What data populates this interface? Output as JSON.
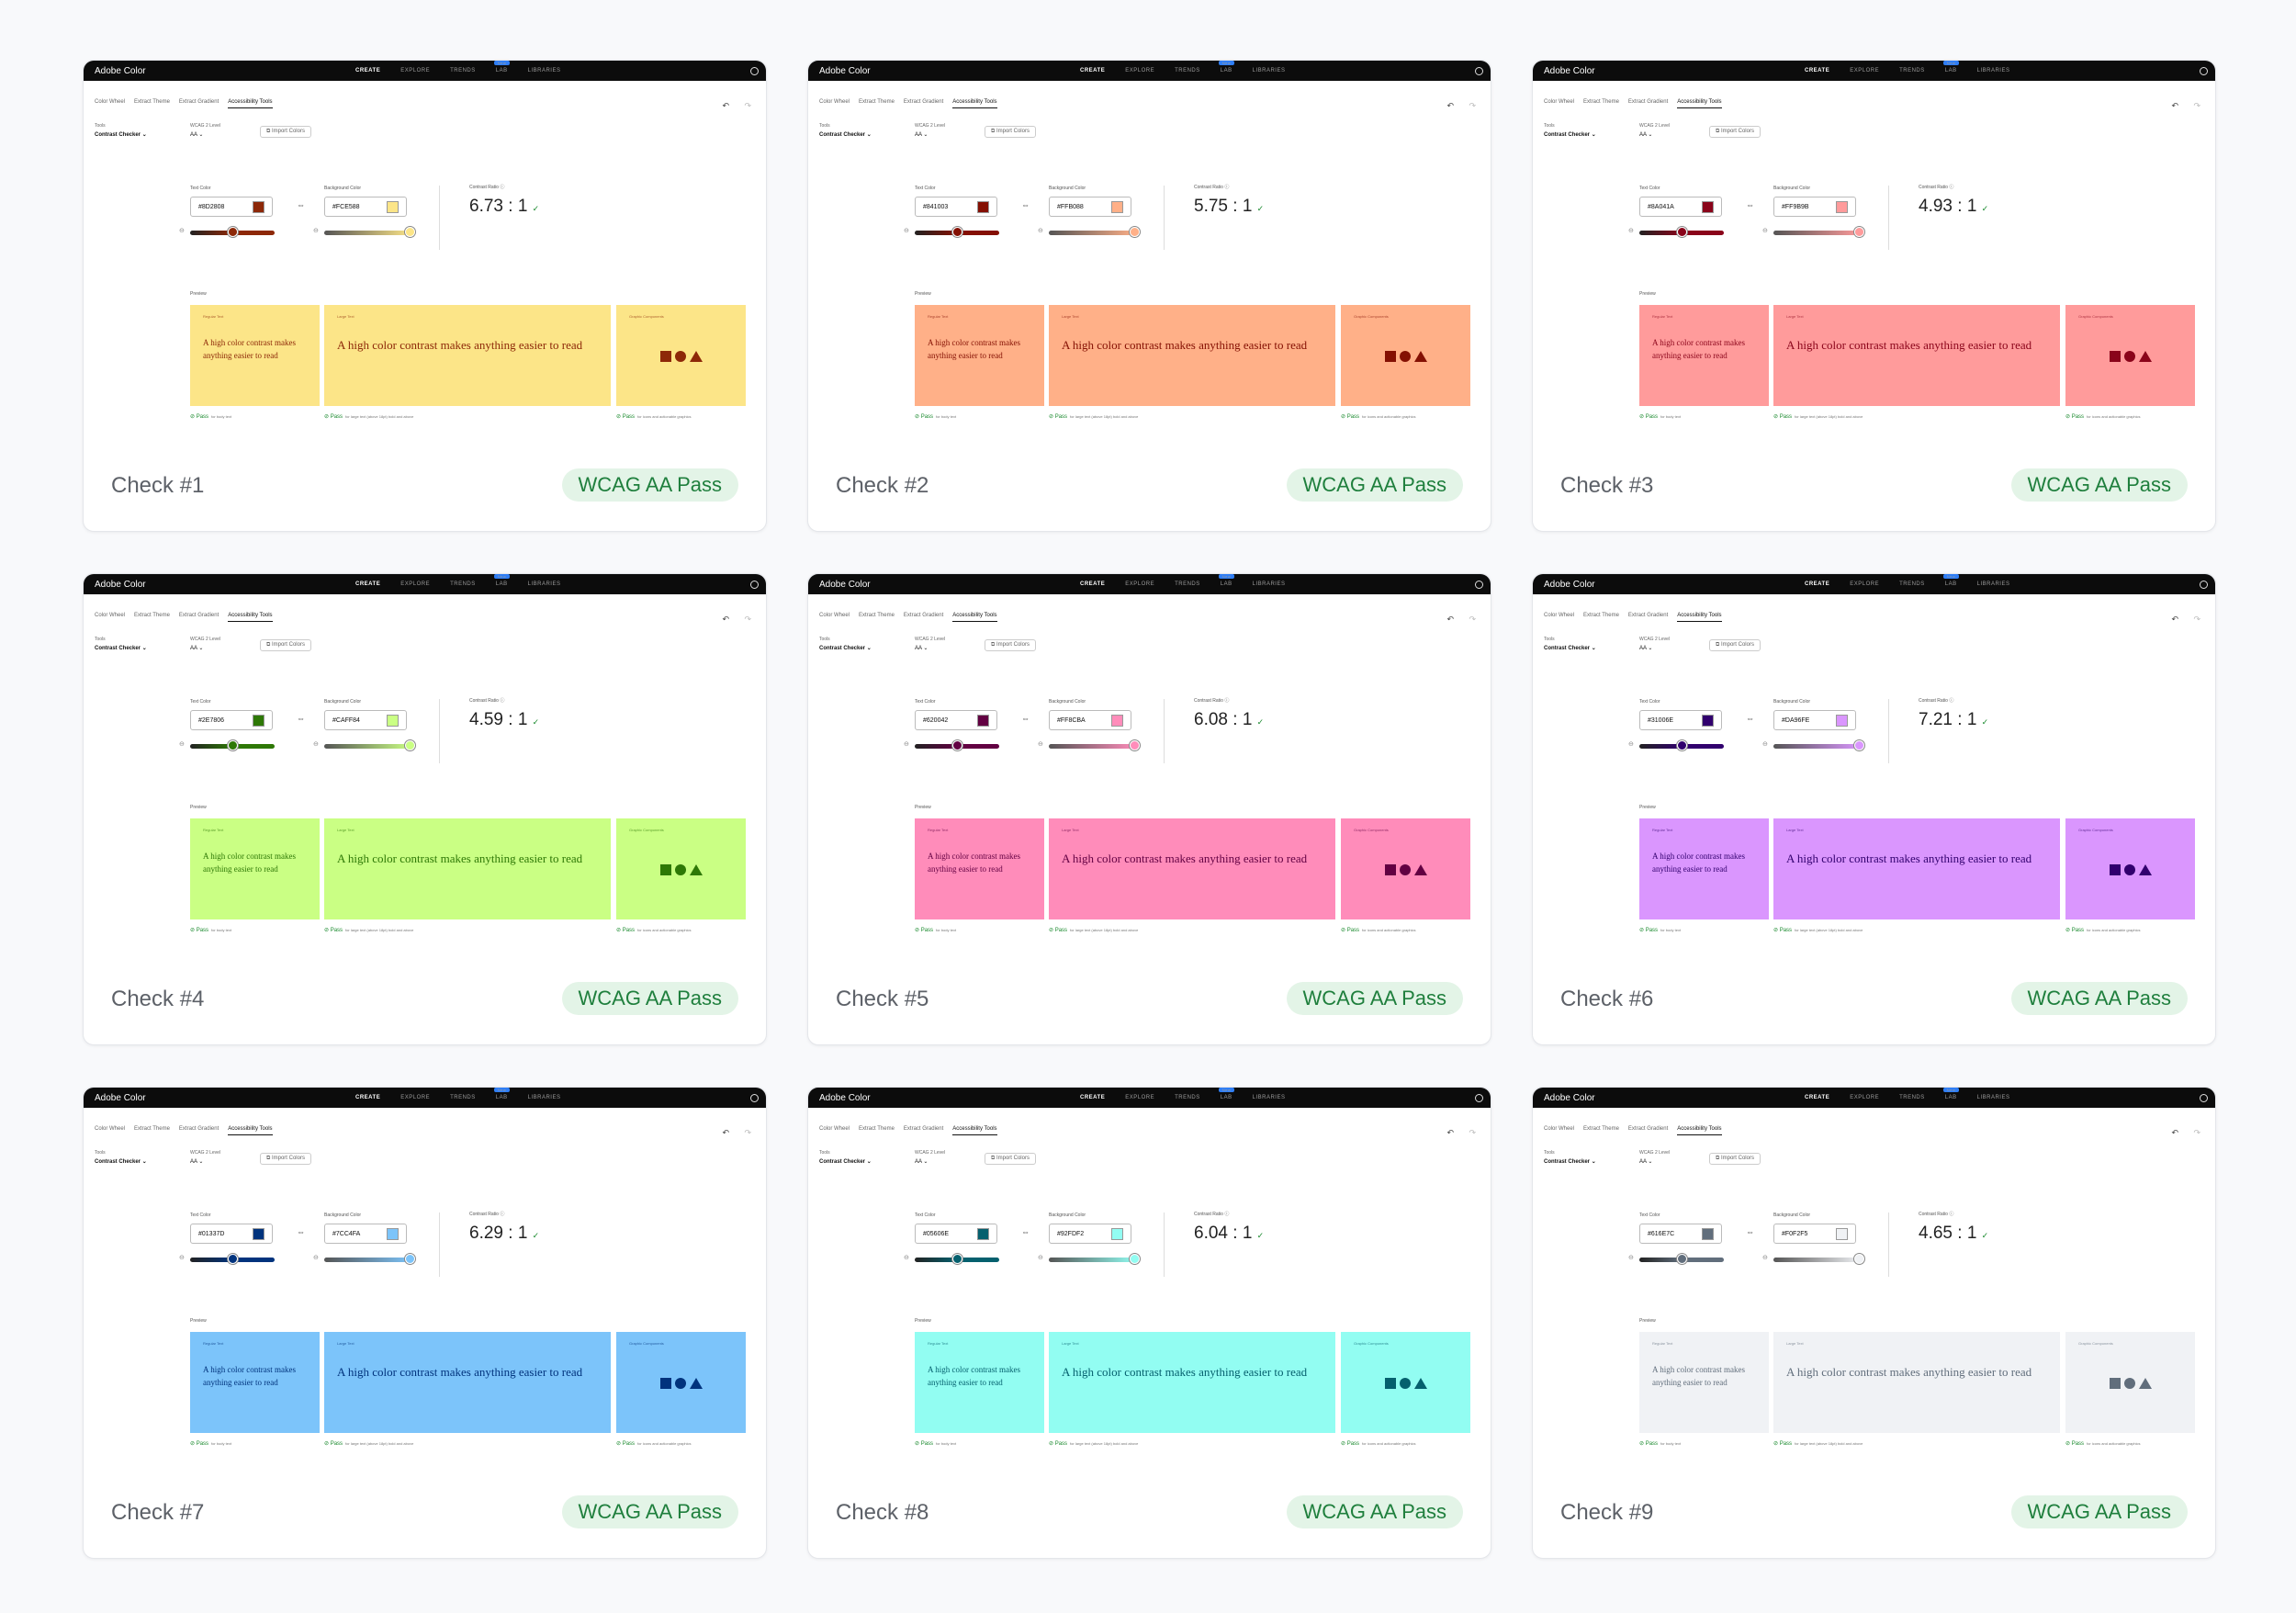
{
  "ui": {
    "brand": "Adobe Color",
    "nav": [
      "CREATE",
      "EXPLORE",
      "TRENDS",
      "LAB",
      "LIBRARIES"
    ],
    "new_badge": "New",
    "tabs": [
      "Color Wheel",
      "Extract Theme",
      "Extract Gradient",
      "Accessibility Tools"
    ],
    "tools_label": "Tools",
    "tools_value": "Contrast Checker",
    "wcag_label": "WCAG 2 Level",
    "wcag_value": "AA",
    "import_label": "Import Colors",
    "text_color_label": "Text Color",
    "bg_color_label": "Background Color",
    "contrast_label": "Contrast Ratio",
    "preview_label": "Preview",
    "regular_text_title": "Regular Text",
    "large_text_title": "Large Text",
    "graphic_title": "Graphic Components",
    "sample_text": "A high color contrast makes anything easier to read",
    "pass_label": "Pass",
    "note_regular": "for body text",
    "note_large": "for large text (above 18pt) bold and above",
    "note_graphic": "for icons and actionable graphics"
  },
  "checks": [
    {
      "label": "Check #1",
      "status": "WCAG AA Pass",
      "text_hex": "#8D2808",
      "bg_hex": "#FCE588",
      "ratio": "6.73 : 1"
    },
    {
      "label": "Check #2",
      "status": "WCAG AA Pass",
      "text_hex": "#841003",
      "bg_hex": "#FFB088",
      "ratio": "5.75 : 1"
    },
    {
      "label": "Check #3",
      "status": "WCAG AA Pass",
      "text_hex": "#8A041A",
      "bg_hex": "#FF9B9B",
      "ratio": "4.93 : 1"
    },
    {
      "label": "Check #4",
      "status": "WCAG AA Pass",
      "text_hex": "#2E7806",
      "bg_hex": "#CAFF84",
      "ratio": "4.59 : 1"
    },
    {
      "label": "Check #5",
      "status": "WCAG AA Pass",
      "text_hex": "#620042",
      "bg_hex": "#FF8CBA",
      "ratio": "6.08 : 1"
    },
    {
      "label": "Check #6",
      "status": "WCAG AA Pass",
      "text_hex": "#31006E",
      "bg_hex": "#DA96FE",
      "ratio": "7.21 : 1"
    },
    {
      "label": "Check #7",
      "status": "WCAG AA Pass",
      "text_hex": "#01337D",
      "bg_hex": "#7CC4FA",
      "ratio": "6.29 : 1"
    },
    {
      "label": "Check #8",
      "status": "WCAG AA Pass",
      "text_hex": "#05606E",
      "bg_hex": "#92FDF2",
      "ratio": "6.04 : 1"
    },
    {
      "label": "Check #9",
      "status": "WCAG AA Pass",
      "text_hex": "#616E7C",
      "bg_hex": "#F0F2F5",
      "ratio": "4.65 : 1"
    }
  ],
  "colors": {
    "page_bg": "#f8f9fb",
    "pill_bg": "#e3f4e7",
    "pill_text": "#1f7f3d",
    "pass_green": "#1a8a2e"
  }
}
